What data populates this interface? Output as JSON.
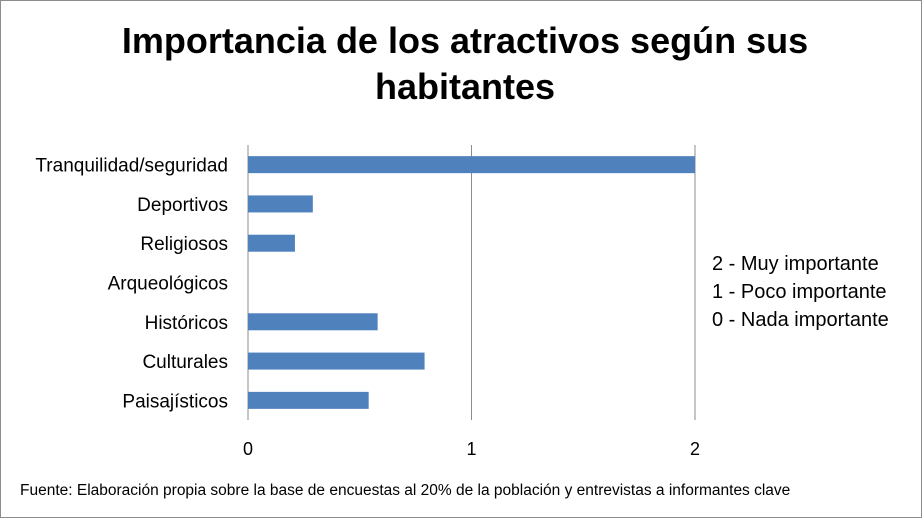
{
  "chart_data": {
    "type": "bar",
    "orientation": "horizontal",
    "title": "Importancia de los atractivos según sus habitantes",
    "categories": [
      "Tranquilidad/seguridad",
      "Deportivos",
      "Religiosos",
      "Arqueológicos",
      "Históricos",
      "Culturales",
      "Paisajísticos"
    ],
    "values": [
      2.0,
      0.29,
      0.21,
      0.0,
      0.58,
      0.79,
      0.54
    ],
    "xlim": [
      0,
      2
    ],
    "xticks": [
      "0",
      "1",
      "2"
    ],
    "xlabel": "",
    "ylabel": "",
    "grid": "vertical",
    "bar_color": "#4f81bd"
  },
  "legend_notes": [
    "2 - Muy importante",
    "1 - Poco importante",
    "0 - Nada importante"
  ],
  "source_note": "Fuente: Elaboración propia sobre la base de encuestas al 20%  de la población y entrevistas a informantes clave"
}
